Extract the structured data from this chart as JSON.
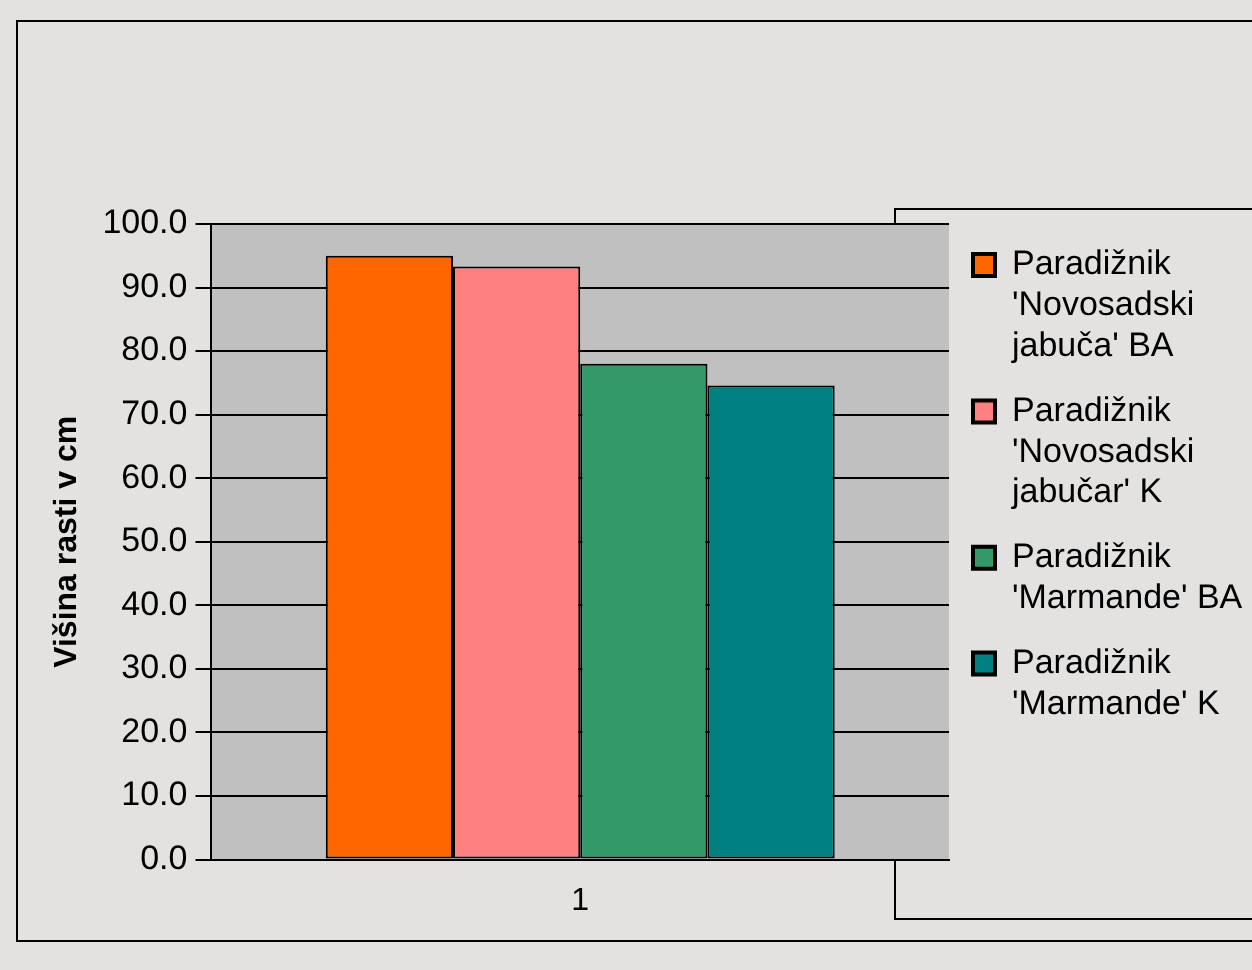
{
  "chart_data": {
    "type": "bar",
    "ylabel": "Višina rasti v cm",
    "categories": [
      "1"
    ],
    "series": [
      {
        "name": "Paradižnik 'Novosadski jabuča' BA",
        "color": "#ff6600",
        "values": [
          95.0
        ]
      },
      {
        "name": "Paradižnik 'Novosadski jabučar' K",
        "color": "#ff8080",
        "values": [
          93.3
        ]
      },
      {
        "name": "Paradižnik 'Marmande' BA",
        "color": "#339966",
        "values": [
          78.0
        ]
      },
      {
        "name": "Paradižnik 'Marmande' K",
        "color": "#008080",
        "values": [
          74.6
        ]
      }
    ],
    "ylim": [
      0,
      100
    ],
    "yticks": [
      {
        "value": 0,
        "label": "0.0"
      },
      {
        "value": 10,
        "label": "10.0"
      },
      {
        "value": 20,
        "label": "20.0"
      },
      {
        "value": 30,
        "label": "30.0"
      },
      {
        "value": 40,
        "label": "40.0"
      },
      {
        "value": 50,
        "label": "50.0"
      },
      {
        "value": 60,
        "label": "60.0"
      },
      {
        "value": 70,
        "label": "70.0"
      },
      {
        "value": 80,
        "label": "80.0"
      },
      {
        "value": 90,
        "label": "90.0"
      },
      {
        "value": 100,
        "label": "100.0"
      }
    ],
    "grid": "y",
    "legend": "right"
  }
}
